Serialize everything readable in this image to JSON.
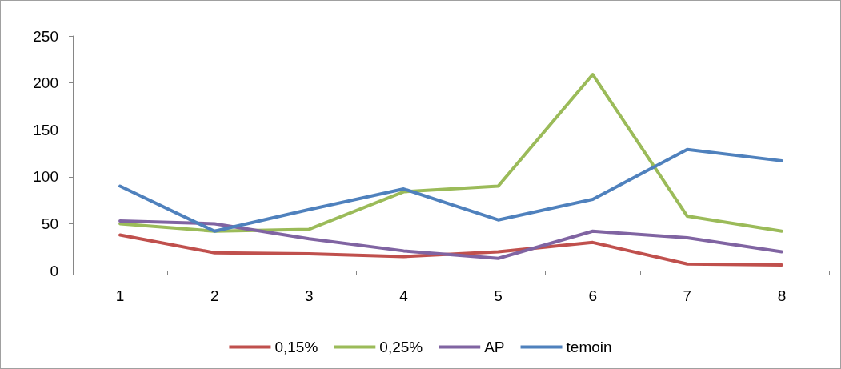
{
  "chart_data": {
    "type": "line",
    "categories": [
      "1",
      "2",
      "3",
      "4",
      "5",
      "6",
      "7",
      "8"
    ],
    "series": [
      {
        "name": "0,15%",
        "color": "#c0504d",
        "values": [
          38,
          19,
          18,
          15,
          20,
          30,
          7,
          6
        ]
      },
      {
        "name": "0,25%",
        "color": "#9bbb59",
        "values": [
          50,
          42,
          44,
          84,
          90,
          209,
          58,
          42
        ]
      },
      {
        "name": "AP",
        "color": "#8064a2",
        "values": [
          53,
          50,
          34,
          21,
          13,
          42,
          35,
          20
        ]
      },
      {
        "name": "temoin",
        "color": "#4f81bd",
        "values": [
          90,
          42,
          65,
          87,
          54,
          76,
          129,
          117
        ]
      }
    ],
    "ylim": [
      0,
      250
    ],
    "yticks": [
      0,
      50,
      100,
      150,
      200,
      250
    ],
    "grid": false,
    "legend": "bottom",
    "marker": "none",
    "line_style": "solid"
  }
}
